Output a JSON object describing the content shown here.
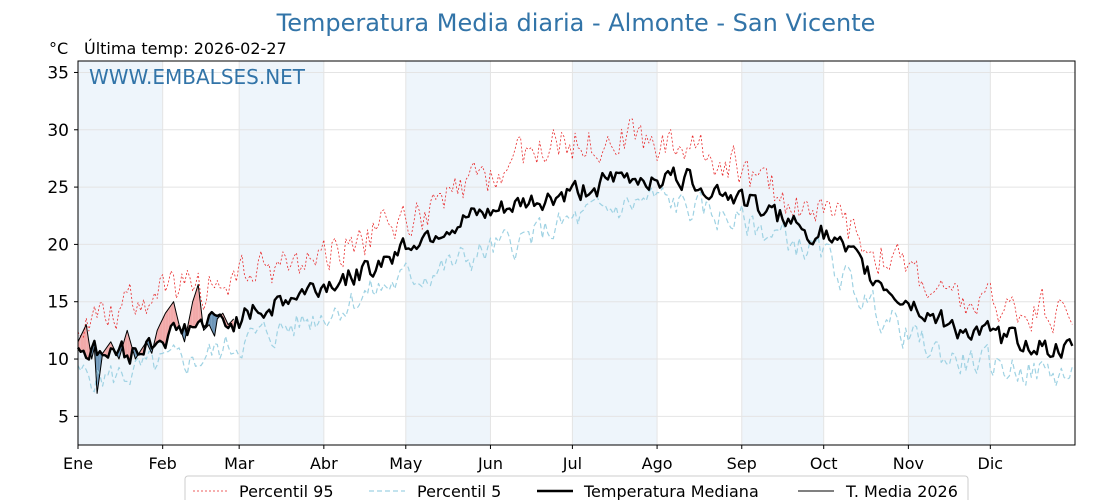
{
  "chart_data": {
    "type": "line",
    "title": "Temperatura Media diaria - Almonte - San Vicente",
    "ylabel": "°C",
    "last_update": "Última temp: 2026-02-27",
    "watermark": "WWW.EMBALSES.NET",
    "ylim": [
      2.5,
      36
    ],
    "yticks": [
      5,
      10,
      15,
      20,
      25,
      30,
      35
    ],
    "months": [
      "Ene",
      "Feb",
      "Mar",
      "Abr",
      "May",
      "Jun",
      "Jul",
      "Ago",
      "Sep",
      "Oct",
      "Nov",
      "Dic"
    ],
    "month_start_day": [
      1,
      32,
      60,
      91,
      121,
      152,
      182,
      213,
      244,
      274,
      305,
      335
    ],
    "days_in_year": 365,
    "legend_position": "bottom-center",
    "colors": {
      "p95": "#e8292a",
      "p5": "#9fd2e3",
      "median": "#000000",
      "current": "#000000",
      "above": "#f2a9a9",
      "below": "#6e96b8",
      "band": "#eef5fb",
      "title": "#3274a8"
    },
    "series": [
      {
        "name": "Percentil 95",
        "key": "p95",
        "anchors": [
          [
            1,
            13.5
          ],
          [
            8,
            14
          ],
          [
            15,
            14.5
          ],
          [
            25,
            15.5
          ],
          [
            32,
            16
          ],
          [
            45,
            16
          ],
          [
            60,
            17
          ],
          [
            75,
            18
          ],
          [
            91,
            19
          ],
          [
            105,
            20.5
          ],
          [
            121,
            22
          ],
          [
            135,
            23.5
          ],
          [
            152,
            26
          ],
          [
            165,
            28
          ],
          [
            182,
            29
          ],
          [
            195,
            29.5
          ],
          [
            213,
            29
          ],
          [
            228,
            28.5
          ],
          [
            244,
            26.5
          ],
          [
            260,
            24
          ],
          [
            274,
            23
          ],
          [
            290,
            20
          ],
          [
            305,
            18
          ],
          [
            320,
            15
          ],
          [
            335,
            14.5
          ],
          [
            350,
            14.5
          ],
          [
            365,
            14
          ]
        ],
        "noise": 1.5,
        "seed": 95
      },
      {
        "name": "Percentil 5",
        "key": "p5",
        "anchors": [
          [
            1,
            8.5
          ],
          [
            15,
            8.5
          ],
          [
            32,
            9.5
          ],
          [
            45,
            10
          ],
          [
            60,
            11.5
          ],
          [
            75,
            12.5
          ],
          [
            91,
            14
          ],
          [
            105,
            15.5
          ],
          [
            121,
            17
          ],
          [
            135,
            18
          ],
          [
            152,
            19.5
          ],
          [
            165,
            20.5
          ],
          [
            182,
            22
          ],
          [
            195,
            23
          ],
          [
            213,
            24
          ],
          [
            228,
            23
          ],
          [
            244,
            22
          ],
          [
            260,
            20.5
          ],
          [
            274,
            19
          ],
          [
            290,
            15
          ],
          [
            305,
            12
          ],
          [
            320,
            10
          ],
          [
            335,
            9.5
          ],
          [
            350,
            9
          ],
          [
            365,
            8.5
          ]
        ],
        "noise": 1.2,
        "seed": 5
      },
      {
        "name": "Temperatura Mediana",
        "key": "median",
        "anchors": [
          [
            1,
            11
          ],
          [
            10,
            10.5
          ],
          [
            20,
            10.5
          ],
          [
            32,
            12
          ],
          [
            45,
            13
          ],
          [
            60,
            13.5
          ],
          [
            75,
            15
          ],
          [
            91,
            16.5
          ],
          [
            105,
            17.5
          ],
          [
            121,
            20
          ],
          [
            135,
            21.5
          ],
          [
            152,
            22.5
          ],
          [
            165,
            23.5
          ],
          [
            182,
            24.5
          ],
          [
            195,
            25.5
          ],
          [
            213,
            26
          ],
          [
            228,
            25.5
          ],
          [
            244,
            24
          ],
          [
            260,
            22
          ],
          [
            274,
            21
          ],
          [
            290,
            17.5
          ],
          [
            305,
            15
          ],
          [
            320,
            13
          ],
          [
            335,
            12
          ],
          [
            350,
            11.5
          ],
          [
            365,
            10.5
          ]
        ],
        "noise": 0.9,
        "seed": 50
      },
      {
        "name": "T. Media 2026",
        "key": "current",
        "anchors": [
          [
            1,
            11.5
          ],
          [
            4,
            13
          ],
          [
            6,
            10
          ],
          [
            7,
            11
          ],
          [
            8,
            7
          ],
          [
            10,
            10.5
          ],
          [
            13,
            11.5
          ],
          [
            16,
            10
          ],
          [
            19,
            12.5
          ],
          [
            22,
            10
          ],
          [
            26,
            11.5
          ],
          [
            28,
            10.5
          ],
          [
            30,
            12.5
          ],
          [
            33,
            14
          ],
          [
            36,
            15
          ],
          [
            38,
            13
          ],
          [
            40,
            11.5
          ],
          [
            43,
            15
          ],
          [
            45,
            16.5
          ],
          [
            47,
            12.5
          ],
          [
            49,
            13
          ],
          [
            51,
            12
          ],
          [
            52,
            13.5
          ],
          [
            54,
            14
          ],
          [
            56,
            13
          ],
          [
            58,
            13.5
          ]
        ],
        "noise": 0,
        "seed": 1
      }
    ]
  }
}
